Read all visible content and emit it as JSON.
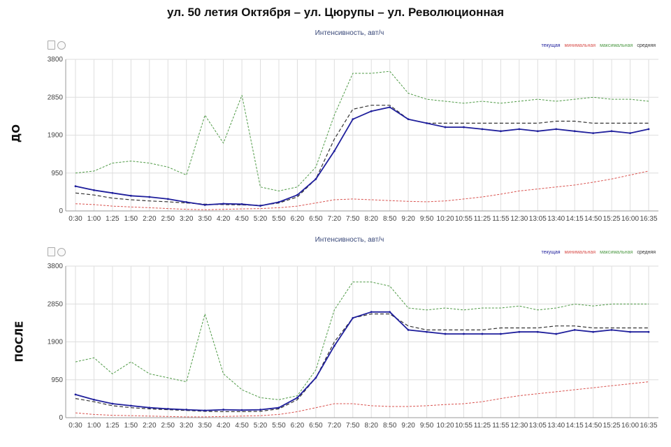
{
  "title": "ул. 50 летия Октября – ул. Цюрупы – ул. Революционная",
  "labels": {
    "before": "ДО",
    "after": "ПОСЛЕ"
  },
  "colors": {
    "current": "#1f1f9c",
    "minimal": "#d9534f",
    "maximal": "#4f9a46",
    "average": "#333333",
    "grid": "#dedede"
  },
  "icons": [
    "pdf-icon",
    "info-icon"
  ],
  "chart_data": [
    {
      "type": "line",
      "title": "Интенсивность, авт/ч",
      "side_label": "ДО",
      "legend": [
        "текущая",
        "минимальная",
        "максимальная",
        "средняя"
      ],
      "legend_placement": "top-right",
      "grid": true,
      "ylim": [
        0,
        3800
      ],
      "yticks": [
        "0",
        "950",
        "1900",
        "2850",
        "3800"
      ],
      "xtick_labels": [
        "0:30",
        "1:00",
        "1:25",
        "1:50",
        "2:20",
        "2:50",
        "3:20",
        "3:50",
        "4:20",
        "4:50",
        "5:20",
        "5:50",
        "6:20",
        "6:50",
        "7:20",
        "7:50",
        "8:20",
        "8:50",
        "9:20",
        "9:50",
        "10:20",
        "10:55",
        "11:25",
        "11:55",
        "12:30",
        "13:05",
        "13:40",
        "14:15",
        "14:50",
        "15:25",
        "16:00",
        "16:35"
      ],
      "x": [
        "0:30",
        "1:00",
        "1:25",
        "1:50",
        "2:20",
        "2:50",
        "3:20",
        "3:50",
        "4:20",
        "4:50",
        "5:20",
        "5:50",
        "6:20",
        "6:50",
        "7:20",
        "7:50",
        "8:20",
        "8:50",
        "9:20",
        "9:50",
        "10:20",
        "10:55",
        "11:25",
        "11:55",
        "12:30",
        "13:05",
        "13:40",
        "14:15",
        "14:50",
        "15:25",
        "16:00",
        "16:35"
      ],
      "series": [
        {
          "name": "текущая",
          "values": [
            620,
            520,
            450,
            380,
            350,
            300,
            220,
            150,
            180,
            170,
            130,
            220,
            400,
            800,
            1500,
            2300,
            2500,
            2600,
            2300,
            2200,
            2100,
            2100,
            2050,
            2000,
            2050,
            2000,
            2050,
            2000,
            1950,
            2000,
            1950,
            2050
          ]
        },
        {
          "name": "минимальная",
          "values": [
            180,
            160,
            120,
            100,
            80,
            60,
            40,
            30,
            40,
            50,
            60,
            80,
            120,
            200,
            280,
            300,
            280,
            260,
            240,
            230,
            250,
            300,
            350,
            420,
            500,
            550,
            600,
            650,
            720,
            800,
            900,
            1000
          ]
        },
        {
          "name": "максимальная",
          "values": [
            950,
            1000,
            1200,
            1250,
            1200,
            1100,
            900,
            2400,
            1700,
            2900,
            600,
            500,
            600,
            1100,
            2400,
            3450,
            3450,
            3500,
            2950,
            2800,
            2750,
            2700,
            2750,
            2700,
            2750,
            2800,
            2750,
            2800,
            2850,
            2800,
            2800,
            2750
          ]
        },
        {
          "name": "средняя",
          "values": [
            450,
            400,
            320,
            280,
            250,
            230,
            200,
            170,
            160,
            150,
            140,
            200,
            350,
            800,
            1800,
            2550,
            2650,
            2650,
            2300,
            2200,
            2200,
            2200,
            2200,
            2200,
            2200,
            2200,
            2250,
            2250,
            2200,
            2200,
            2200,
            2200
          ]
        }
      ]
    },
    {
      "type": "line",
      "title": "Интенсивность, авт/ч",
      "side_label": "ПОСЛЕ",
      "legend": [
        "текущая",
        "минимальная",
        "максимальная",
        "средняя"
      ],
      "legend_placement": "top-right",
      "grid": true,
      "ylim": [
        0,
        3800
      ],
      "yticks": [
        "0",
        "950",
        "1900",
        "2850",
        "3800"
      ],
      "xtick_labels": [
        "0:30",
        "1:00",
        "1:25",
        "1:50",
        "2:20",
        "2:50",
        "3:20",
        "3:50",
        "4:20",
        "4:50",
        "5:20",
        "5:50",
        "6:20",
        "6:50",
        "7:20",
        "7:50",
        "8:20",
        "8:50",
        "9:20",
        "9:50",
        "10:20",
        "10:55",
        "11:25",
        "11:55",
        "12:30",
        "13:05",
        "13:40",
        "14:15",
        "14:50",
        "15:25",
        "16:00",
        "16:35"
      ],
      "x": [
        "0:30",
        "1:00",
        "1:25",
        "1:50",
        "2:20",
        "2:50",
        "3:20",
        "3:50",
        "4:20",
        "4:50",
        "5:20",
        "5:50",
        "6:20",
        "6:50",
        "7:20",
        "7:50",
        "8:20",
        "8:50",
        "9:20",
        "9:50",
        "10:20",
        "10:55",
        "11:25",
        "11:55",
        "12:30",
        "13:05",
        "13:40",
        "14:15",
        "14:50",
        "15:25",
        "16:00",
        "16:35"
      ],
      "series": [
        {
          "name": "текущая",
          "values": [
            580,
            450,
            350,
            300,
            250,
            220,
            200,
            180,
            200,
            190,
            200,
            250,
            500,
            1000,
            1800,
            2500,
            2650,
            2650,
            2200,
            2150,
            2100,
            2100,
            2100,
            2100,
            2150,
            2150,
            2100,
            2200,
            2150,
            2200,
            2150,
            2150
          ]
        },
        {
          "name": "минимальная",
          "values": [
            120,
            80,
            60,
            50,
            40,
            30,
            20,
            20,
            30,
            40,
            50,
            80,
            150,
            250,
            350,
            350,
            300,
            280,
            280,
            300,
            330,
            350,
            400,
            480,
            550,
            600,
            650,
            700,
            750,
            800,
            850,
            900
          ]
        },
        {
          "name": "максимальная",
          "values": [
            1400,
            1500,
            1100,
            1400,
            1100,
            1000,
            900,
            2600,
            1100,
            700,
            500,
            450,
            550,
            1200,
            2700,
            3400,
            3400,
            3300,
            2750,
            2700,
            2750,
            2700,
            2750,
            2750,
            2800,
            2700,
            2750,
            2850,
            2800,
            2850,
            2850,
            2850
          ]
        },
        {
          "name": "средняя",
          "values": [
            480,
            400,
            300,
            250,
            220,
            200,
            180,
            160,
            150,
            150,
            160,
            220,
            450,
            1000,
            1900,
            2500,
            2600,
            2600,
            2300,
            2200,
            2200,
            2200,
            2200,
            2250,
            2250,
            2250,
            2300,
            2300,
            2250,
            2250,
            2250,
            2250
          ]
        }
      ]
    }
  ]
}
